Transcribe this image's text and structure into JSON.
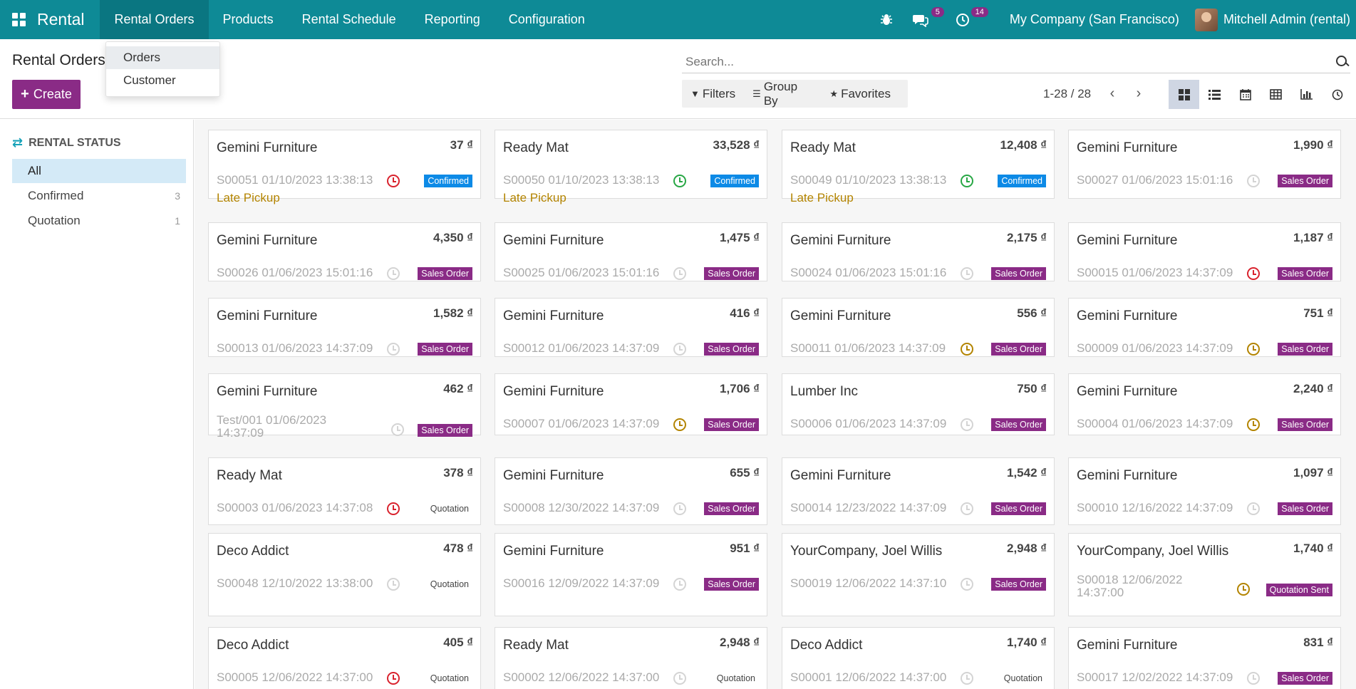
{
  "topbar": {
    "brand": "Rental",
    "menu": [
      "Rental Orders",
      "Products",
      "Rental Schedule",
      "Reporting",
      "Configuration"
    ],
    "messages_count": "5",
    "activities_count": "14",
    "company": "My Company (San Francisco)",
    "user": "Mitchell Admin (rental)"
  },
  "dropdown": {
    "items": [
      "Orders",
      "Customer"
    ]
  },
  "control_panel": {
    "title": "Rental Orders",
    "create_label": "Create",
    "search_placeholder": "Search...",
    "filters_label": "Filters",
    "groupby_label": "Group By",
    "favorites_label": "Favorites",
    "pager": "1-28 / 28"
  },
  "sidebar": {
    "title": "RENTAL STATUS",
    "items": [
      {
        "label": "All",
        "count": ""
      },
      {
        "label": "Confirmed",
        "count": "3"
      },
      {
        "label": "Quotation",
        "count": "1"
      }
    ]
  },
  "cards": [
    {
      "partner": "Gemini Furniture",
      "amount": "37 ₫",
      "ref": "S00051 01/10/2023 13:38:13",
      "clock": "red",
      "tag": "Confirmed",
      "tag_type": "confirmed",
      "late": "Late Pickup"
    },
    {
      "partner": "Ready Mat",
      "amount": "33,528 ₫",
      "ref": "S00050 01/10/2023 13:38:13",
      "clock": "green",
      "tag": "Confirmed",
      "tag_type": "confirmed",
      "late": "Late Pickup"
    },
    {
      "partner": "Ready Mat",
      "amount": "12,408 ₫",
      "ref": "S00049 01/10/2023 13:38:13",
      "clock": "green",
      "tag": "Confirmed",
      "tag_type": "confirmed",
      "late": "Late Pickup"
    },
    {
      "partner": "Gemini Furniture",
      "amount": "1,990 ₫",
      "ref": "S00027 01/06/2023 15:01:16",
      "clock": "gray",
      "tag": "Sales Order",
      "tag_type": "sales",
      "late": ""
    },
    {
      "partner": "Gemini Furniture",
      "amount": "4,350 ₫",
      "ref": "S00026 01/06/2023 15:01:16",
      "clock": "gray",
      "tag": "Sales Order",
      "tag_type": "sales",
      "late": ""
    },
    {
      "partner": "Gemini Furniture",
      "amount": "1,475 ₫",
      "ref": "S00025 01/06/2023 15:01:16",
      "clock": "gray",
      "tag": "Sales Order",
      "tag_type": "sales",
      "late": ""
    },
    {
      "partner": "Gemini Furniture",
      "amount": "2,175 ₫",
      "ref": "S00024 01/06/2023 15:01:16",
      "clock": "gray",
      "tag": "Sales Order",
      "tag_type": "sales",
      "late": ""
    },
    {
      "partner": "Gemini Furniture",
      "amount": "1,187 ₫",
      "ref": "S00015 01/06/2023 14:37:09",
      "clock": "red",
      "tag": "Sales Order",
      "tag_type": "sales",
      "late": ""
    },
    {
      "partner": "Gemini Furniture",
      "amount": "1,582 ₫",
      "ref": "S00013 01/06/2023 14:37:09",
      "clock": "gray",
      "tag": "Sales Order",
      "tag_type": "sales",
      "late": ""
    },
    {
      "partner": "Gemini Furniture",
      "amount": "416 ₫",
      "ref": "S00012 01/06/2023 14:37:09",
      "clock": "gray",
      "tag": "Sales Order",
      "tag_type": "sales",
      "late": ""
    },
    {
      "partner": "Gemini Furniture",
      "amount": "556 ₫",
      "ref": "S00011 01/06/2023 14:37:09",
      "clock": "orange",
      "tag": "Sales Order",
      "tag_type": "sales",
      "late": ""
    },
    {
      "partner": "Gemini Furniture",
      "amount": "751 ₫",
      "ref": "S00009 01/06/2023 14:37:09",
      "clock": "orange",
      "tag": "Sales Order",
      "tag_type": "sales",
      "late": ""
    },
    {
      "partner": "Gemini Furniture",
      "amount": "462 ₫",
      "ref": "Test/001 01/06/2023 14:37:09",
      "clock": "gray",
      "tag": "Sales Order",
      "tag_type": "sales",
      "late": ""
    },
    {
      "partner": "Gemini Furniture",
      "amount": "1,706 ₫",
      "ref": "S00007 01/06/2023 14:37:09",
      "clock": "orange",
      "tag": "Sales Order",
      "tag_type": "sales",
      "late": ""
    },
    {
      "partner": "Lumber Inc",
      "amount": "750 ₫",
      "ref": "S00006 01/06/2023 14:37:09",
      "clock": "gray",
      "tag": "Sales Order",
      "tag_type": "sales",
      "late": ""
    },
    {
      "partner": "Gemini Furniture",
      "amount": "2,240 ₫",
      "ref": "S00004 01/06/2023 14:37:09",
      "clock": "orange",
      "tag": "Sales Order",
      "tag_type": "sales",
      "late": ""
    },
    {
      "partner": "Ready Mat",
      "amount": "378 ₫",
      "ref": "S00003 01/06/2023 14:37:08",
      "clock": "red",
      "tag": "Quotation",
      "tag_type": "quotation",
      "late": ""
    },
    {
      "partner": "Gemini Furniture",
      "amount": "655 ₫",
      "ref": "S00008 12/30/2022 14:37:09",
      "clock": "gray",
      "tag": "Sales Order",
      "tag_type": "sales",
      "late": ""
    },
    {
      "partner": "Gemini Furniture",
      "amount": "1,542 ₫",
      "ref": "S00014 12/23/2022 14:37:09",
      "clock": "gray",
      "tag": "Sales Order",
      "tag_type": "sales",
      "late": ""
    },
    {
      "partner": "Gemini Furniture",
      "amount": "1,097 ₫",
      "ref": "S00010 12/16/2022 14:37:09",
      "clock": "gray",
      "tag": "Sales Order",
      "tag_type": "sales",
      "late": ""
    },
    {
      "partner": "Deco Addict",
      "amount": "478 ₫",
      "ref": "S00048 12/10/2022 13:38:00",
      "clock": "gray",
      "tag": "Quotation",
      "tag_type": "quotation",
      "late": ""
    },
    {
      "partner": "Gemini Furniture",
      "amount": "951 ₫",
      "ref": "S00016 12/09/2022 14:37:09",
      "clock": "gray",
      "tag": "Sales Order",
      "tag_type": "sales",
      "late": ""
    },
    {
      "partner": "YourCompany, Joel Willis",
      "amount": "2,948 ₫",
      "ref": "S00019 12/06/2022 14:37:10",
      "clock": "gray",
      "tag": "Sales Order",
      "tag_type": "sales",
      "late": ""
    },
    {
      "partner": "YourCompany, Joel Willis",
      "amount": "1,740 ₫",
      "ref": "S00018 12/06/2022 14:37:00",
      "clock": "orange",
      "tag": "Quotation Sent",
      "tag_type": "qsent",
      "late": ""
    },
    {
      "partner": "Deco Addict",
      "amount": "405 ₫",
      "ref": "S00005 12/06/2022 14:37:00",
      "clock": "red",
      "tag": "Quotation",
      "tag_type": "quotation",
      "late": ""
    },
    {
      "partner": "Ready Mat",
      "amount": "2,948 ₫",
      "ref": "S00002 12/06/2022 14:37:00",
      "clock": "gray",
      "tag": "Quotation",
      "tag_type": "quotation",
      "late": ""
    },
    {
      "partner": "Deco Addict",
      "amount": "1,740 ₫",
      "ref": "S00001 12/06/2022 14:37:00",
      "clock": "gray",
      "tag": "Quotation",
      "tag_type": "quotation",
      "late": ""
    },
    {
      "partner": "Gemini Furniture",
      "amount": "831 ₫",
      "ref": "S00017 12/02/2022 14:37:09",
      "clock": "gray",
      "tag": "Sales Order",
      "tag_type": "sales",
      "late": ""
    }
  ]
}
